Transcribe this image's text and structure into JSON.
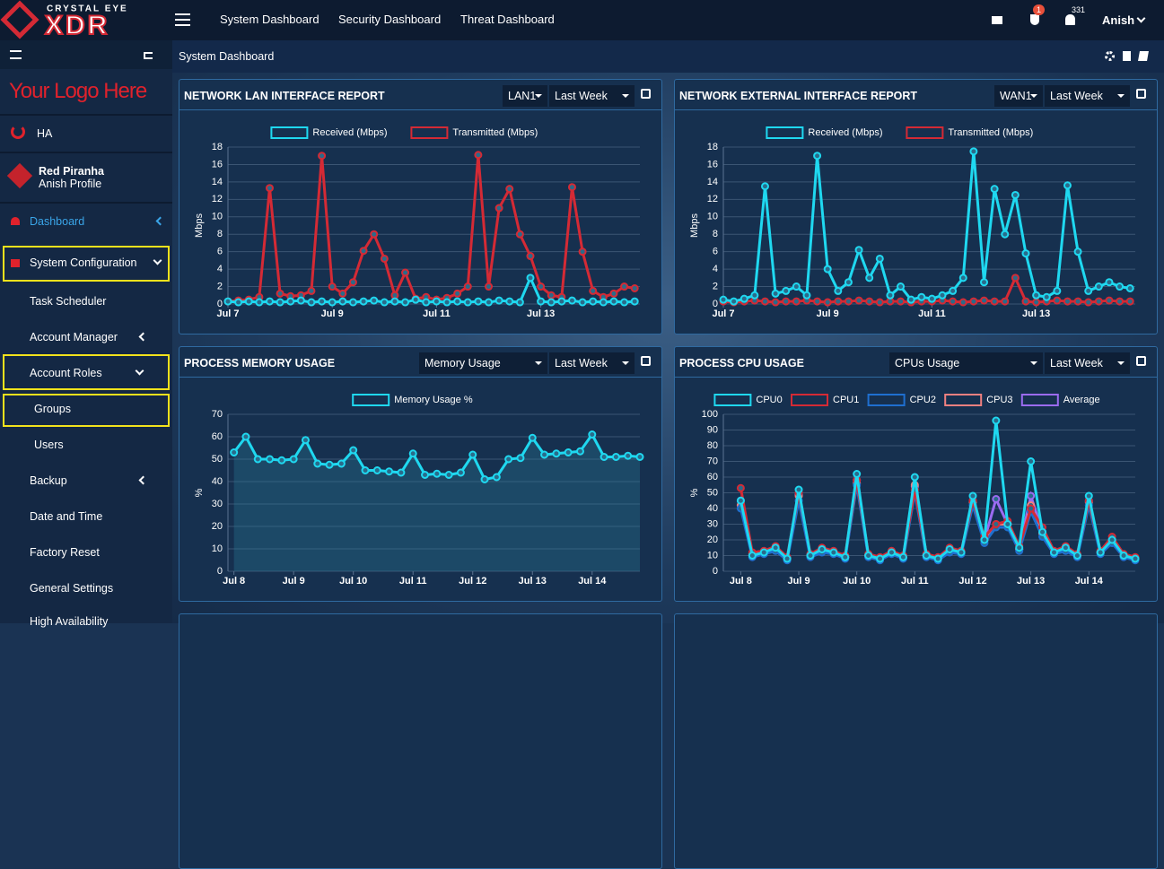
{
  "header": {
    "brand_top": "CRYSTAL EYE",
    "brand": "XDR",
    "nav": [
      "System Dashboard",
      "Security Dashboard",
      "Threat Dashboard"
    ],
    "badges": [
      1,
      331
    ],
    "user": "Anish"
  },
  "sidebar": {
    "logo": "Your Logo Here",
    "ha": "HA",
    "profile_name": "Red Piranha",
    "profile_sub": "Anish Profile",
    "items": [
      "Dashboard",
      "System Configuration",
      "Task Scheduler",
      "Account Manager",
      "Account Roles",
      "Groups",
      "Users",
      "Backup",
      "Date and Time",
      "Factory Reset",
      "General Settings",
      "High Availability"
    ]
  },
  "page": {
    "title": "System Dashboard"
  },
  "chart_data": [
    {
      "type": "line",
      "title": "NETWORK LAN INTERFACE REPORT",
      "controls": [
        "LAN1",
        "Last Week"
      ],
      "ylabel": "Mbps",
      "grid": true,
      "x": [
        0,
        0.2,
        0.4,
        0.6,
        0.8,
        1,
        1.2,
        1.4,
        1.6,
        1.8,
        2,
        2.2,
        2.4,
        2.6,
        2.8,
        3,
        3.2,
        3.4,
        3.6,
        3.8,
        4,
        4.2,
        4.4,
        4.6,
        4.8,
        5,
        5.2,
        5.4,
        5.6,
        5.8,
        6,
        6.2,
        6.4,
        6.6,
        6.8,
        7,
        7.2,
        7.4,
        7.6,
        7.8
      ],
      "xlim": [
        0,
        7.9
      ],
      "xticks": [
        {
          "value": 0,
          "label": "Jul 7"
        },
        {
          "value": 2,
          "label": "Jul 9"
        },
        {
          "value": 4,
          "label": "Jul 11"
        },
        {
          "value": 6,
          "label": "Jul 13"
        }
      ],
      "ylim": [
        0,
        18
      ],
      "yticks": [
        0,
        2,
        4,
        6,
        8,
        10,
        12,
        14,
        16,
        18
      ],
      "series": [
        {
          "name": "Received (Mbps)",
          "color": "#1fd8f0",
          "values": [
            0.3,
            0.2,
            0.3,
            0.2,
            0.3,
            0.2,
            0.3,
            0.4,
            0.2,
            0.3,
            0.2,
            0.3,
            0.2,
            0.3,
            0.4,
            0.2,
            0.3,
            0.2,
            0.5,
            0.2,
            0.3,
            0.2,
            0.3,
            0.2,
            0.3,
            0.2,
            0.4,
            0.3,
            0.2,
            3.0,
            0.3,
            0.2,
            0.3,
            0.4,
            0.2,
            0.3,
            0.2,
            0.3,
            0.2,
            0.3
          ]
        },
        {
          "name": "Transmitted (Mbps)",
          "color": "#d42a35",
          "values": [
            0.3,
            0.4,
            0.5,
            0.8,
            13.3,
            1.2,
            0.9,
            1.0,
            1.5,
            17,
            2.0,
            1.2,
            2.5,
            6.1,
            8.0,
            5.2,
            1.0,
            3.6,
            0.6,
            0.8,
            0.5,
            0.7,
            1.2,
            2.0,
            17.1,
            2.0,
            11,
            13.2,
            8,
            5.5,
            2.0,
            1.0,
            0.8,
            13.4,
            6.0,
            1.5,
            0.8,
            1.2,
            2.0,
            1.8
          ]
        }
      ]
    },
    {
      "type": "line",
      "title": "NETWORK EXTERNAL INTERFACE REPORT",
      "controls": [
        "WAN1",
        "Last Week"
      ],
      "ylabel": "Mbps",
      "grid": true,
      "x": [
        0,
        0.2,
        0.4,
        0.6,
        0.8,
        1,
        1.2,
        1.4,
        1.6,
        1.8,
        2,
        2.2,
        2.4,
        2.6,
        2.8,
        3,
        3.2,
        3.4,
        3.6,
        3.8,
        4,
        4.2,
        4.4,
        4.6,
        4.8,
        5,
        5.2,
        5.4,
        5.6,
        5.8,
        6,
        6.2,
        6.4,
        6.6,
        6.8,
        7,
        7.2,
        7.4,
        7.6,
        7.8
      ],
      "xlim": [
        0,
        7.9
      ],
      "xticks": [
        {
          "value": 0,
          "label": "Jul 7"
        },
        {
          "value": 2,
          "label": "Jul 9"
        },
        {
          "value": 4,
          "label": "Jul 11"
        },
        {
          "value": 6,
          "label": "Jul 13"
        }
      ],
      "ylim": [
        0,
        18
      ],
      "yticks": [
        0,
        2,
        4,
        6,
        8,
        10,
        12,
        14,
        16,
        18
      ],
      "series": [
        {
          "name": "Received (Mbps)",
          "color": "#1fd8f0",
          "values": [
            0.5,
            0.3,
            0.6,
            1.0,
            13.5,
            1.2,
            1.5,
            2.0,
            1.0,
            17.0,
            4.0,
            1.5,
            2.5,
            6.2,
            3.0,
            5.2,
            1.0,
            2.0,
            0.5,
            0.8,
            0.6,
            1.0,
            1.5,
            3.0,
            17.5,
            2.5,
            13.2,
            8.0,
            12.5,
            5.8,
            1.0,
            0.8,
            1.5,
            13.6,
            6.0,
            1.5,
            2.0,
            2.5,
            2.0,
            1.8
          ]
        },
        {
          "name": "Transmitted (Mbps)",
          "color": "#d42a35",
          "values": [
            0.3,
            0.2,
            0.3,
            0.4,
            0.3,
            0.2,
            0.3,
            0.3,
            0.4,
            0.3,
            0.2,
            0.3,
            0.3,
            0.4,
            0.3,
            0.2,
            0.3,
            0.3,
            0.2,
            0.3,
            0.3,
            0.4,
            0.3,
            0.2,
            0.3,
            0.4,
            0.3,
            0.3,
            3.0,
            0.3,
            0.2,
            0.3,
            0.4,
            0.3,
            0.3,
            0.2,
            0.3,
            0.4,
            0.3,
            0.3
          ]
        }
      ]
    },
    {
      "type": "line",
      "area": true,
      "title": "PROCESS MEMORY USAGE",
      "controls": [
        "Memory Usage",
        "Last Week"
      ],
      "ylabel": "%",
      "grid": true,
      "x": [
        0,
        0.2,
        0.4,
        0.6,
        0.8,
        1,
        1.2,
        1.4,
        1.6,
        1.8,
        2,
        2.2,
        2.4,
        2.6,
        2.8,
        3,
        3.2,
        3.4,
        3.6,
        3.8,
        4,
        4.2,
        4.4,
        4.6,
        4.8,
        5,
        5.2,
        5.4,
        5.6,
        5.8,
        6,
        6.2,
        6.4,
        6.6,
        6.8
      ],
      "xlim": [
        -0.1,
        6.8
      ],
      "xticks": [
        {
          "value": 0,
          "label": "Jul 8"
        },
        {
          "value": 1,
          "label": "Jul 9"
        },
        {
          "value": 2,
          "label": "Jul 10"
        },
        {
          "value": 3,
          "label": "Jul 11"
        },
        {
          "value": 4,
          "label": "Jul 12"
        },
        {
          "value": 5,
          "label": "Jul 13"
        },
        {
          "value": 6,
          "label": "Jul 14"
        }
      ],
      "ylim": [
        0,
        70
      ],
      "yticks": [
        0,
        10,
        20,
        30,
        40,
        50,
        60,
        70
      ],
      "series": [
        {
          "name": "Memory Usage %",
          "color": "#1fd8f0",
          "values": [
            53,
            60,
            50,
            50,
            49.5,
            50,
            58.5,
            48,
            47.5,
            48,
            54,
            45,
            45,
            44.5,
            44,
            52.5,
            43,
            43.5,
            43,
            44,
            52,
            41,
            42,
            50,
            50.5,
            59.5,
            52,
            52.5,
            53,
            53.5,
            61,
            51,
            51,
            51.5,
            51
          ]
        }
      ]
    },
    {
      "type": "line",
      "title": "PROCESS CPU USAGE",
      "controls": [
        "CPUs Usage",
        "Last Week"
      ],
      "ylabel": "%",
      "grid": true,
      "x": [
        0,
        0.2,
        0.4,
        0.6,
        0.8,
        1,
        1.2,
        1.4,
        1.6,
        1.8,
        2,
        2.2,
        2.4,
        2.6,
        2.8,
        3,
        3.2,
        3.4,
        3.6,
        3.8,
        4,
        4.2,
        4.4,
        4.6,
        4.8,
        5,
        5.2,
        5.4,
        5.6,
        5.8,
        6,
        6.2,
        6.4,
        6.6,
        6.8
      ],
      "xlim": [
        -0.3,
        6.8
      ],
      "xticks": [
        {
          "value": 0,
          "label": "Jul 8"
        },
        {
          "value": 1,
          "label": "Jul 9"
        },
        {
          "value": 2,
          "label": "Jul 10"
        },
        {
          "value": 3,
          "label": "Jul 11"
        },
        {
          "value": 4,
          "label": "Jul 12"
        },
        {
          "value": 5,
          "label": "Jul 13"
        },
        {
          "value": 6,
          "label": "Jul 14"
        }
      ],
      "ylim": [
        0,
        100
      ],
      "yticks": [
        0,
        10,
        20,
        30,
        40,
        50,
        60,
        70,
        80,
        90,
        100
      ],
      "series": [
        {
          "name": "CPU0",
          "color": "#1fd8f0",
          "values": [
            45,
            10,
            12,
            15,
            8,
            52,
            10,
            14,
            12,
            9,
            62,
            10,
            8,
            12,
            9,
            60,
            10,
            8,
            14,
            12,
            48,
            20,
            96,
            30,
            15,
            70,
            25,
            12,
            15,
            10,
            48,
            12,
            20,
            10,
            8
          ]
        },
        {
          "name": "CPU1",
          "color": "#d42a35",
          "values": [
            53,
            12,
            13,
            16,
            9,
            50,
            11,
            15,
            13,
            10,
            58,
            11,
            9,
            13,
            10,
            52,
            11,
            9,
            15,
            13,
            45,
            22,
            30,
            32,
            16,
            40,
            28,
            13,
            16,
            11,
            45,
            13,
            22,
            11,
            9
          ]
        },
        {
          "name": "CPU2",
          "color": "#1f6fd0",
          "values": [
            40,
            9,
            11,
            13,
            7,
            45,
            9,
            12,
            11,
            8,
            55,
            9,
            7,
            11,
            8,
            50,
            9,
            7,
            12,
            11,
            42,
            18,
            28,
            28,
            13,
            38,
            22,
            11,
            13,
            9,
            42,
            11,
            18,
            9,
            7
          ]
        },
        {
          "name": "CPU3",
          "color": "#f08080",
          "values": [
            42,
            11,
            12,
            14,
            8,
            48,
            10,
            13,
            12,
            9,
            56,
            10,
            8,
            12,
            9,
            55,
            10,
            8,
            13,
            12,
            44,
            20,
            30,
            30,
            14,
            42,
            24,
            12,
            14,
            10,
            44,
            12,
            20,
            10,
            8
          ]
        },
        {
          "name": "Average",
          "color": "#9b6bf0",
          "values": [
            45,
            10,
            12,
            14,
            8,
            49,
            10,
            13,
            12,
            9,
            58,
            10,
            8,
            12,
            9,
            54,
            10,
            8,
            13,
            12,
            45,
            20,
            46,
            30,
            14,
            48,
            25,
            12,
            14,
            10,
            45,
            12,
            20,
            10,
            8
          ]
        }
      ]
    }
  ]
}
